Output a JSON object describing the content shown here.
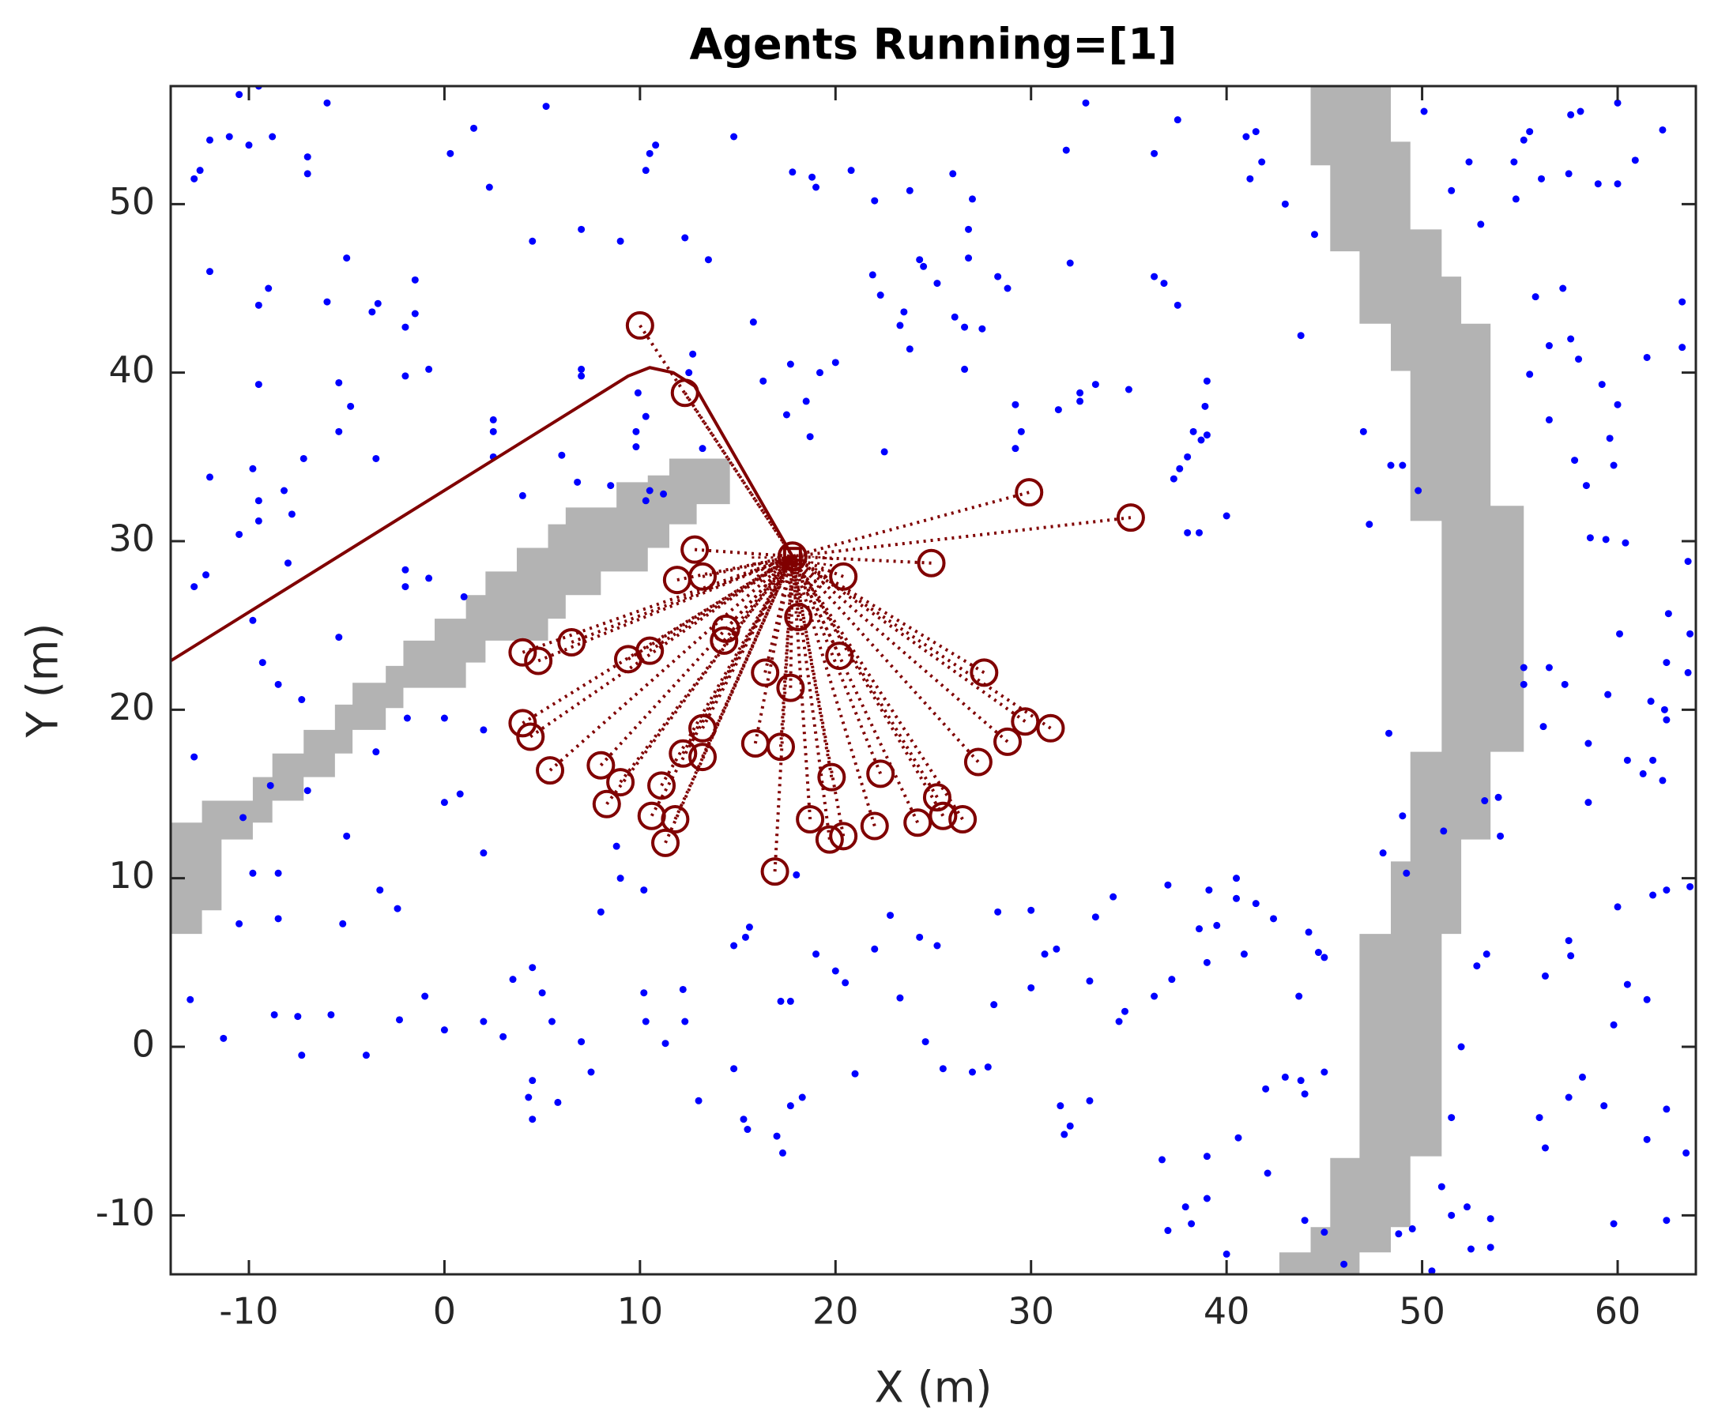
{
  "chart_data": {
    "type": "scatter",
    "title": "Agents Running=[1]",
    "xlabel": "X (m)",
    "ylabel": "Y (m)",
    "xlim": [
      -14,
      64
    ],
    "ylim": [
      -13.5,
      57
    ],
    "xticks": [
      -10,
      0,
      10,
      20,
      30,
      40,
      50,
      60
    ],
    "yticks": [
      -10,
      0,
      10,
      20,
      30,
      40,
      50
    ],
    "obstacles": [
      {
        "color": "#b3b3b3",
        "x": [
          -14,
          -12.4,
          -12.4,
          -9.8,
          -9.8,
          -8.8,
          -8.8,
          -7.2,
          -7.2,
          -5.6,
          -5.6,
          -4.7,
          -4.7,
          -3.0,
          -3.0,
          -2.1,
          -2.1,
          -0.5,
          -0.5,
          1.1,
          1.1,
          2.1,
          2.1,
          3.7,
          3.7,
          5.3,
          5.3,
          6.2,
          6.2,
          8.8,
          8.8,
          10.4,
          10.4,
          11.5,
          11.5,
          14.6,
          14.6,
          12.9,
          12.9,
          11.5,
          11.5,
          10.4,
          10.4,
          8.0,
          8.0,
          6.2,
          6.2,
          5.3,
          5.3,
          2.1,
          2.1,
          1.1,
          1.1,
          -2.1,
          -2.1,
          -3.0,
          -3.0,
          -4.7,
          -4.7,
          -5.6,
          -5.6,
          -7.2,
          -7.2,
          -8.8,
          -8.8,
          -9.8,
          -9.8,
          -11.4,
          -11.4,
          -12.4,
          -12.4,
          -14
        ],
        "y": [
          13.3,
          13.3,
          14.6,
          14.6,
          16.0,
          16.0,
          17.4,
          17.4,
          18.8,
          18.8,
          20.3,
          20.3,
          21.6,
          21.6,
          22.6,
          22.6,
          24.1,
          24.1,
          25.4,
          25.4,
          26.8,
          26.8,
          28.2,
          28.2,
          29.6,
          29.6,
          31.0,
          31.0,
          32.0,
          32.0,
          33.5,
          33.5,
          33.9,
          33.9,
          34.9,
          34.9,
          32.2,
          32.2,
          31.0,
          31.0,
          29.6,
          29.6,
          28.2,
          28.2,
          26.8,
          26.8,
          25.4,
          25.4,
          24.1,
          24.1,
          22.8,
          22.8,
          21.3,
          21.3,
          20.1,
          20.1,
          18.8,
          18.8,
          17.4,
          17.4,
          16.0,
          16.0,
          14.6,
          14.6,
          13.3,
          13.3,
          12.3,
          12.3,
          8.1,
          8.1,
          6.7,
          6.7
        ]
      },
      {
        "color": "#b3b3b3",
        "x": [
          44.3,
          44.3,
          45.3,
          45.3,
          46.8,
          46.8,
          48.4,
          48.4,
          49.4,
          49.4,
          51.0,
          51.0,
          49.4,
          49.4,
          48.4,
          48.4,
          46.8,
          46.8,
          45.3,
          45.3,
          44.3,
          44.3,
          42.7,
          42.7,
          46.8,
          46.8,
          48.4,
          48.4,
          49.4,
          49.4,
          51.0,
          51.0,
          52.0,
          52.0,
          53.5,
          53.5,
          55.2,
          55.2,
          53.5,
          53.5,
          52.0,
          52.0,
          51.0,
          51.0,
          49.4,
          49.4,
          48.4,
          48.4
        ],
        "y": [
          57.0,
          52.3,
          52.3,
          47.2,
          47.2,
          42.9,
          42.9,
          40.1,
          40.1,
          31.2,
          31.2,
          17.5,
          17.5,
          11.0,
          11.0,
          6.7,
          6.7,
          -6.6,
          -6.6,
          -10.7,
          -10.7,
          -12.2,
          -12.2,
          -13.5,
          -13.5,
          -12.2,
          -12.2,
          -10.7,
          -10.7,
          -6.5,
          -6.5,
          6.7,
          6.7,
          12.3,
          12.3,
          17.5,
          17.5,
          32.1,
          32.1,
          42.9,
          42.9,
          45.7,
          45.7,
          48.5,
          48.5,
          53.7,
          53.7,
          57.0
        ]
      }
    ],
    "points": {
      "color": "#0000ff",
      "x": [
        -12.8,
        -12.5,
        -12,
        -11,
        -10.5,
        -9.5,
        -10,
        -8.8,
        -7,
        -7,
        -6,
        -12,
        -9.5,
        -9,
        -6,
        -5,
        -3.7,
        -3.4,
        -2,
        -1.5,
        -1.5,
        0.3,
        2.3,
        1.5,
        4.5,
        5.2,
        7,
        9,
        10.3,
        10.5,
        10.8,
        12.3,
        13.5,
        14.8,
        17.8,
        18.8,
        20.8,
        19,
        22,
        23.8,
        25.2,
        24.5,
        26,
        27,
        26.8,
        26.8,
        28.3,
        28.8,
        32,
        32.8,
        31.8,
        36.3,
        37.5,
        41,
        41.5,
        41.8,
        41.2,
        43,
        44.5,
        43.8,
        36.3,
        36.8,
        37.5,
        39,
        38.9,
        38.3,
        38.7,
        39,
        38,
        37.6,
        37.3,
        40,
        38,
        38.6,
        35,
        32.5,
        32.5,
        33.3,
        29.2,
        29.5,
        29.2,
        31.4,
        24.3,
        21.9,
        22.3,
        23.5,
        23.3,
        23.8,
        26.1,
        26.6,
        26.6,
        27.5,
        22.5,
        20,
        18.7,
        18.5,
        17.5,
        16.3,
        15.8,
        17.7,
        19.2,
        12.7,
        12.5,
        13.2,
        10.3,
        9.8,
        9.9,
        7,
        7,
        6,
        6.8,
        8.5,
        9.8,
        10.5,
        10.3,
        11.2,
        4,
        2.5,
        2.5,
        2.5,
        -0.8,
        -2,
        -4.8,
        -5.4,
        -5.4,
        -7.2,
        -8.2,
        -9.8,
        -9.5,
        -9.5,
        -7.8,
        -8,
        -10.5,
        -12.2,
        -12.8,
        -12,
        -9.5,
        -3.5,
        -2,
        -2,
        -0.8,
        1,
        -9.8,
        -9.3,
        -8.5,
        -7.3,
        -5.4,
        -1.9,
        0,
        2,
        -3.5,
        -12.8,
        -8.9,
        -7,
        -10.3,
        -5,
        0,
        0.8,
        -9.8,
        -8.5,
        -10.5,
        -8.5,
        -5.2,
        -3.3,
        -2.4,
        -13,
        -11.3,
        -8.7,
        -7.5,
        -5.8,
        -4,
        -7.3,
        -2.3,
        -1,
        0,
        2,
        3.5,
        4.5,
        5,
        5.5,
        3,
        4.5,
        4.3,
        4.5,
        5.8,
        7,
        7.5,
        2,
        8,
        8.8,
        9,
        10.2,
        10.2,
        10.3,
        11.3,
        12.3,
        12.2,
        13,
        14.8,
        15.4,
        15.6,
        14.8,
        15.3,
        15.5,
        17,
        17.7,
        17.3,
        17.2,
        17.7,
        18,
        18.3,
        19,
        20,
        20.5,
        21,
        22,
        22.8,
        23.3,
        24.3,
        24.6,
        25.2,
        25.5,
        27,
        27.8,
        28.1,
        28.3,
        30,
        30,
        30.7,
        31.3,
        31.5,
        31.7,
        33,
        32,
        33.3,
        33,
        34.2,
        34.5,
        34.8,
        36.3,
        37.2,
        37,
        38.6,
        39,
        39.5,
        39.1,
        40.5,
        40.5,
        40.9,
        42.4,
        41.5,
        43.7,
        44.2,
        45,
        44.7,
        42,
        43,
        43.8,
        44,
        45,
        42.1,
        40.6,
        39,
        36.7,
        37.9,
        38.2,
        37,
        39,
        40,
        44,
        45,
        46,
        48.8,
        49.5,
        51.5,
        52.5,
        52.3,
        53.5,
        53.5,
        50.5,
        56,
        56.3,
        57.5,
        59.8,
        62.5,
        63.5,
        61.5,
        59.3,
        58.2,
        59.8,
        60.5,
        61.5,
        62.5,
        52,
        51.5,
        51,
        52.8,
        53.3,
        56.3,
        57.5,
        57.6,
        60,
        62.5,
        61.8,
        63.7,
        48,
        49.2,
        49,
        51.1,
        53.2,
        54,
        53.9,
        56.2,
        55.2,
        55.2,
        57.3,
        59.5,
        58.5,
        60.5,
        61.3,
        61.8,
        62.4,
        62.5,
        61.7,
        60.1,
        60.4,
        59.4,
        58.4,
        59.8,
        57.8,
        56.5,
        56.5,
        55.5,
        57.6,
        58,
        59.2,
        59.6,
        60,
        61.5,
        63.3,
        63.3,
        57.2,
        55.8,
        56.1,
        57.5,
        59,
        58.1,
        57.6,
        55.5,
        55.2,
        54.7,
        54.8,
        53,
        52.4,
        51.5,
        50.1,
        60,
        60.9,
        60,
        62.3,
        62.7,
        63.6,
        63.7,
        62.6,
        62.5,
        63.6,
        47,
        47.3,
        48.3,
        49,
        49.8,
        48.4,
        58.6,
        58.5,
        62.3,
        56.5
      ],
      "y": [
        51.5,
        52,
        53.8,
        54,
        56.5,
        57,
        53.5,
        54,
        51.8,
        52.8,
        56,
        46,
        44,
        45,
        44.2,
        46.8,
        43.6,
        44.1,
        42.7,
        43.5,
        45.5,
        53,
        51,
        54.5,
        47.8,
        55.8,
        48.5,
        47.8,
        52,
        53,
        53.5,
        48,
        46.7,
        54,
        51.9,
        51.6,
        52,
        51,
        50.2,
        50.8,
        45.3,
        46.3,
        51.8,
        50.3,
        48.5,
        46.8,
        45.7,
        45,
        46.5,
        56,
        53.2,
        53,
        55,
        54,
        54.3,
        52.5,
        51.5,
        50,
        48.2,
        42.2,
        45.7,
        45.3,
        44,
        39.5,
        38,
        36.5,
        36,
        36.3,
        35,
        34.3,
        33.7,
        31.5,
        30.5,
        30.5,
        39,
        38.3,
        38.8,
        39.3,
        38.1,
        36.5,
        35.5,
        37.8,
        46.7,
        45.8,
        44.6,
        43.6,
        42.8,
        41.4,
        43.3,
        42.7,
        40.2,
        42.6,
        35.3,
        40.6,
        36.2,
        38.3,
        37.5,
        39.5,
        43,
        40.5,
        40,
        41.1,
        40,
        35.5,
        37.4,
        36.5,
        38.8,
        39.8,
        40.2,
        35.1,
        33.5,
        33.3,
        35.6,
        33,
        32.4,
        32.8,
        32.7,
        37.2,
        36.5,
        35,
        40.2,
        39.8,
        38,
        39.4,
        36.5,
        34.9,
        33,
        34.3,
        32.4,
        31.2,
        31.6,
        28.7,
        30.4,
        28,
        27.3,
        33.8,
        39.3,
        34.9,
        28.3,
        27.3,
        27.8,
        26.7,
        25.3,
        22.8,
        21.5,
        20.6,
        24.3,
        19.5,
        19.5,
        18.8,
        17.5,
        17.2,
        15.5,
        15.2,
        13.6,
        12.5,
        14.5,
        15,
        10.3,
        10.3,
        7.3,
        7.6,
        7.3,
        9.3,
        8.2,
        2.8,
        0.5,
        1.9,
        1.8,
        1.9,
        -0.5,
        -0.5,
        1.6,
        3,
        1,
        1.5,
        4,
        4.7,
        3.2,
        1.5,
        0.6,
        -2,
        -3,
        -4.3,
        -3.3,
        0.3,
        -1.5,
        11.5,
        8,
        11.9,
        10,
        9.3,
        3.2,
        1.5,
        0.2,
        1.5,
        3.4,
        -3.2,
        6,
        6.5,
        7.1,
        -1.3,
        -4.3,
        -4.9,
        -5.3,
        -3.5,
        -6.3,
        2.7,
        2.7,
        10.2,
        -3,
        5.5,
        4.5,
        3.8,
        -1.6,
        5.8,
        7.8,
        2.9,
        6.5,
        0.3,
        6,
        -1.3,
        -1.5,
        -1.2,
        2.5,
        8,
        3.5,
        8.1,
        5.5,
        5.8,
        -3.5,
        -5.2,
        -3.2,
        -4.7,
        7.7,
        3.9,
        8.9,
        1.5,
        2.1,
        3,
        4,
        9.6,
        7,
        5,
        7.2,
        9.3,
        10,
        8.8,
        5.5,
        7.6,
        8.5,
        3,
        6.8,
        5.3,
        5.6,
        -2.5,
        -1.8,
        -2,
        -2.8,
        -1.5,
        -7.5,
        -5.4,
        -6.5,
        -6.7,
        -9.5,
        -10.5,
        -10.9,
        -9,
        -12.3,
        -10.3,
        -11,
        -12.9,
        -11.1,
        -10.8,
        -10,
        -12,
        -9.5,
        -10.2,
        -11.9,
        -13.3,
        -4.2,
        -6,
        -3,
        -10.5,
        -10.3,
        -6.3,
        -5.5,
        -3.5,
        -1.8,
        1.3,
        3.7,
        2.8,
        -3.7,
        0,
        -4.2,
        -8.3,
        4.8,
        5.5,
        4.2,
        6.3,
        5.4,
        8.3,
        9.3,
        9,
        9.5,
        11.5,
        10.3,
        13.7,
        12.8,
        14.6,
        12.5,
        14.8,
        19,
        21.5,
        22.5,
        21.5,
        20.9,
        14.5,
        17,
        16.2,
        17,
        20,
        19.4,
        20.5,
        24.5,
        29.9,
        30.1,
        33.3,
        34.5,
        34.8,
        37.2,
        41.6,
        39.9,
        42,
        40.8,
        39.3,
        36.1,
        38.1,
        40.9,
        41.5,
        44.2,
        45,
        44.5,
        51.5,
        51.8,
        51.2,
        55.5,
        55.3,
        54.3,
        53.8,
        52.5,
        50.3,
        48.8,
        52.5,
        50.8,
        55.5,
        51.2,
        52.6,
        56,
        54.4,
        57.2,
        28.8,
        24.5,
        25.7,
        22.8,
        22.2,
        36.5,
        31,
        18.6,
        34.5,
        33,
        34.5,
        30.2,
        18,
        15.8,
        22.5
      ]
    },
    "targets": {
      "color": "#800000",
      "x": [
        10.0,
        12.3,
        29.9,
        35.1,
        24.9,
        12.8,
        13.2,
        11.9,
        20.4,
        18.1,
        14.4,
        14.3,
        6.5,
        4.0,
        4.8,
        10.5,
        9.4,
        20.2,
        16.4,
        17.7,
        27.6,
        4.0,
        4.4,
        13.2,
        12.2,
        13.2,
        15.9,
        17.2,
        29.7,
        31.0,
        28.8,
        27.3,
        5.4,
        8.0,
        9.0,
        8.3,
        11.1,
        10.6,
        11.8,
        11.3,
        19.8,
        22.3,
        25.2,
        24.2,
        25.5,
        26.5,
        18.7,
        22.0,
        19.7,
        20.4,
        16.9
      ],
      "y": [
        42.8,
        38.8,
        32.9,
        31.4,
        28.7,
        29.5,
        27.9,
        27.7,
        27.9,
        25.5,
        24.8,
        24.1,
        24.0,
        23.4,
        22.9,
        23.5,
        23.0,
        23.2,
        22.2,
        21.3,
        22.2,
        19.2,
        18.4,
        18.9,
        17.4,
        17.2,
        18.0,
        17.8,
        19.3,
        18.9,
        18.1,
        16.9,
        16.4,
        16.7,
        15.7,
        14.4,
        15.5,
        13.7,
        13.5,
        12.1,
        16.0,
        16.2,
        14.8,
        13.3,
        13.7,
        13.5,
        13.5,
        13.1,
        12.3,
        12.5,
        10.4
      ]
    },
    "agent": {
      "x": 17.8,
      "y": 29.1,
      "color": "#800000"
    },
    "path": {
      "color": "#800000",
      "x": [
        -14,
        9.4,
        10.5,
        11.7,
        12.8,
        17.8
      ],
      "y": [
        22.9,
        39.8,
        40.3,
        40.0,
        39.2,
        29.1
      ]
    }
  }
}
